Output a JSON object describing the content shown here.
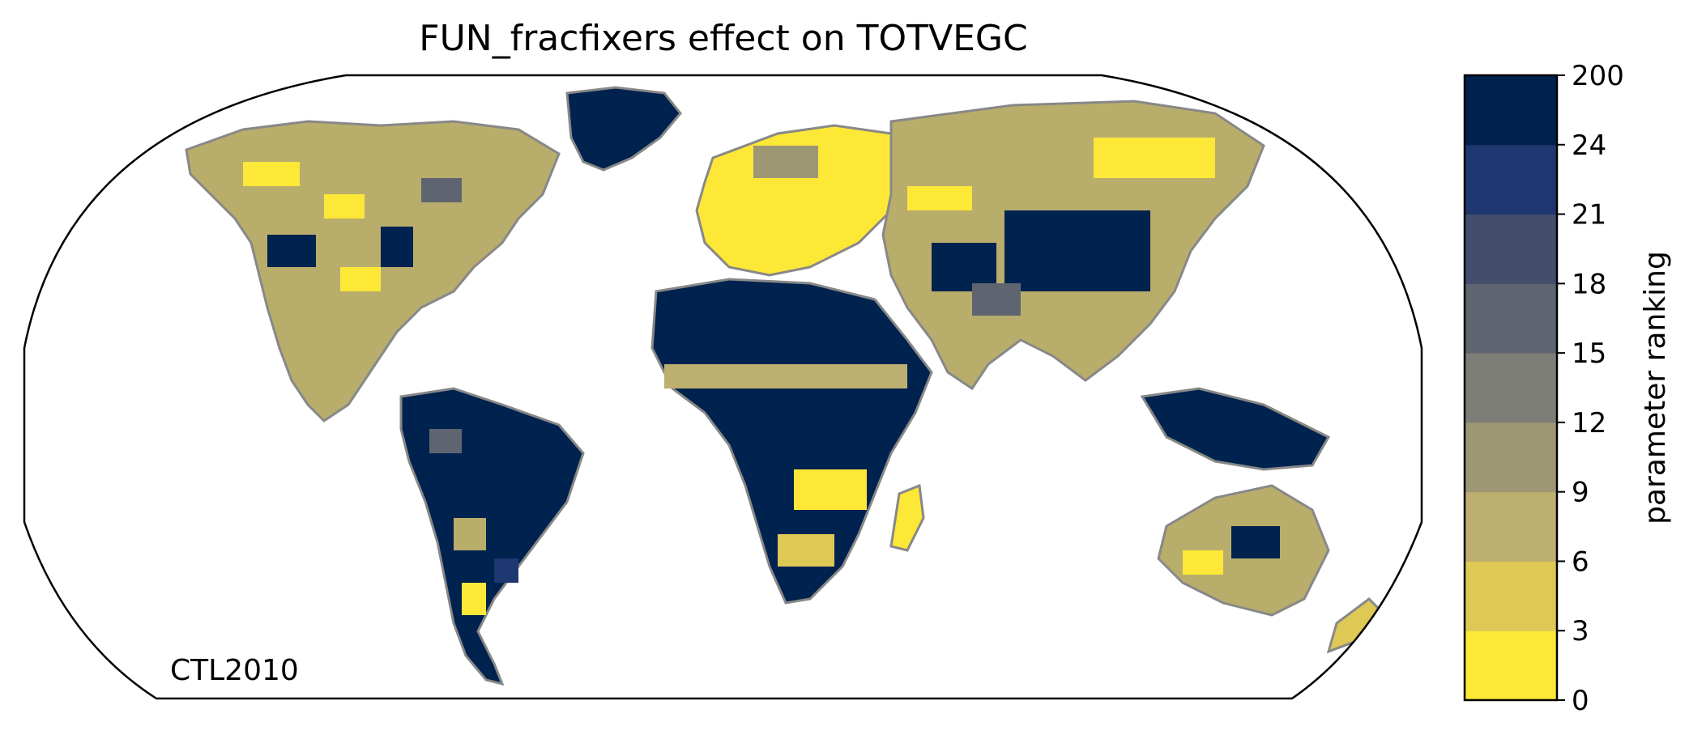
{
  "title": "FUN_fracfixers effect on TOTVEGC",
  "annotation": "CTL2010",
  "colorbar": {
    "label": "parameter ranking",
    "ticks": [
      "0",
      "3",
      "6",
      "9",
      "12",
      "15",
      "18",
      "21",
      "24",
      "200"
    ],
    "colors": [
      "#fde737",
      "#dec856",
      "#bcaf6f",
      "#9d9775",
      "#7e7e78",
      "#5f6570",
      "#434e6c",
      "#1e3770",
      "#00224e"
    ]
  },
  "map": {
    "projection": "robinson",
    "coastline_color": "#888888",
    "land_fill": "#b9ad6c"
  }
}
